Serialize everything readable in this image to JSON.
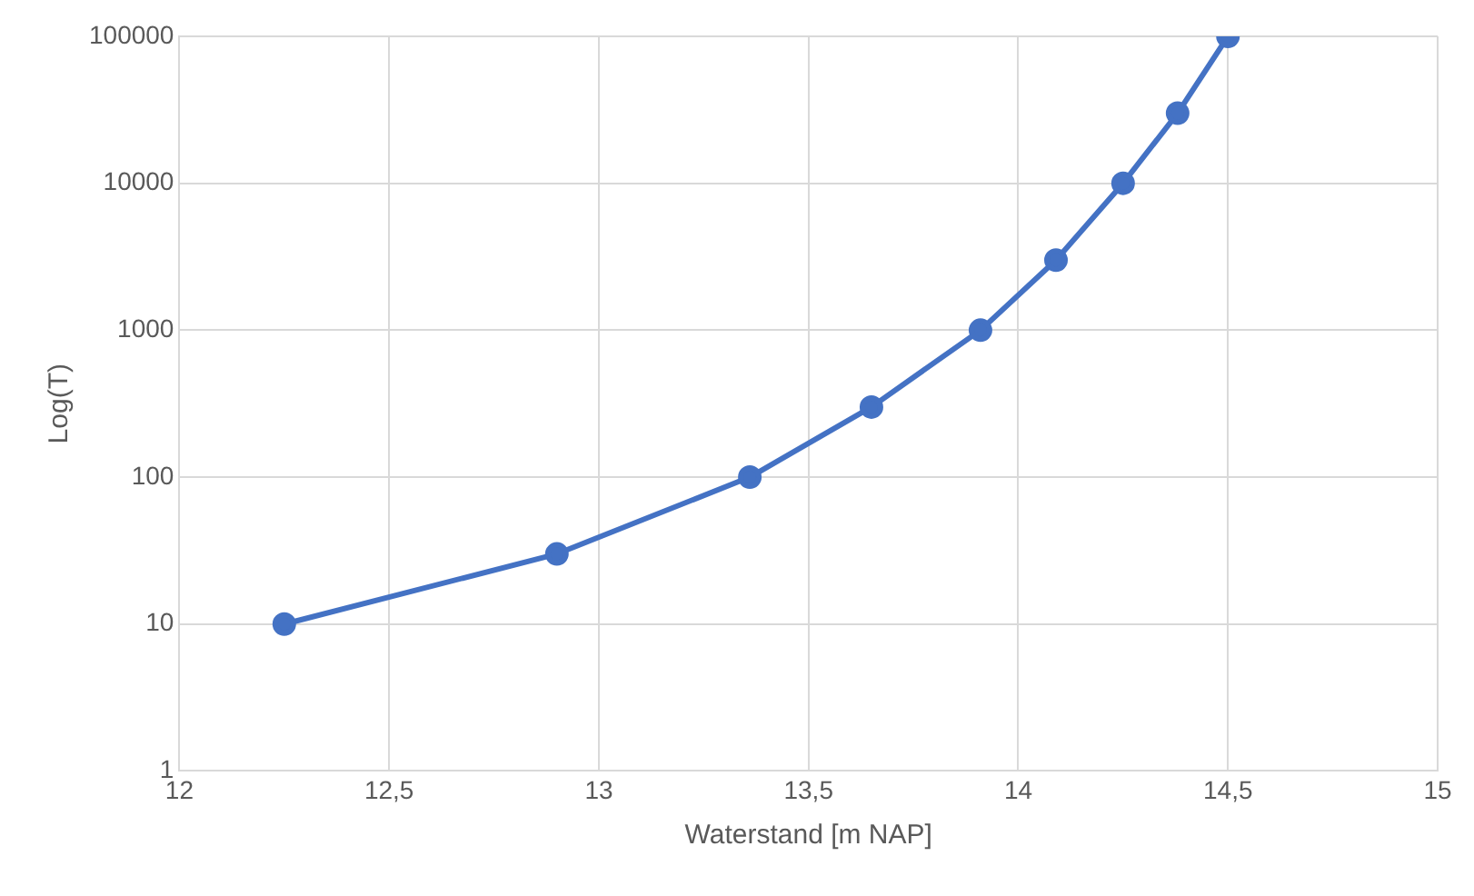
{
  "chart_data": {
    "type": "line",
    "xlabel": "Waterstand [m NAP]",
    "ylabel": "Log(T)",
    "x": [
      12.25,
      12.9,
      13.36,
      13.65,
      13.91,
      14.09,
      14.25,
      14.38,
      14.5
    ],
    "series": [
      {
        "color": "#4472c4",
        "values": [
          10,
          30,
          100,
          300,
          1000,
          3000,
          10000,
          30000,
          100000
        ]
      }
    ],
    "xlim": [
      12,
      15
    ],
    "xticks": [
      12,
      {
        "value": 12.5,
        "label": "12,5"
      },
      13,
      {
        "value": 13.5,
        "label": "13,5"
      },
      14,
      {
        "value": 14.5,
        "label": "14,5"
      },
      15
    ],
    "ylim": [
      1,
      100000
    ],
    "yticks": [
      1,
      10,
      100,
      1000,
      10000,
      100000
    ],
    "log": "y",
    "grid": true,
    "legend": false,
    "marker": "circle",
    "line_style": "solid"
  }
}
